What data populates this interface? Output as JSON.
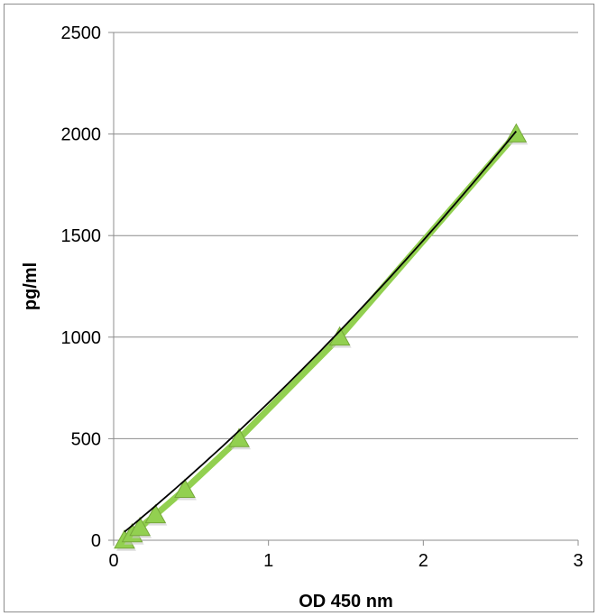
{
  "chart_data": {
    "type": "scatter",
    "title": "",
    "xlabel": "OD 450 nm",
    "ylabel": "pg/ml",
    "xlim": [
      0,
      3
    ],
    "ylim": [
      0,
      2500
    ],
    "x_ticks": [
      "0",
      "1",
      "2",
      "3"
    ],
    "y_ticks": [
      "0",
      "500",
      "1000",
      "1500",
      "2000",
      "2500"
    ],
    "grid": "horizontal",
    "legend": "none",
    "series": [
      {
        "marker": "triangle",
        "color": "#92d050",
        "points": [
          {
            "x": 0.07,
            "y": 0
          },
          {
            "x": 0.12,
            "y": 31.25
          },
          {
            "x": 0.17,
            "y": 62.5
          },
          {
            "x": 0.27,
            "y": 125
          },
          {
            "x": 0.46,
            "y": 250
          },
          {
            "x": 0.81,
            "y": 500
          },
          {
            "x": 1.46,
            "y": 1000
          },
          {
            "x": 2.6,
            "y": 2000
          }
        ]
      }
    ],
    "trendline": {
      "type": "polynomial",
      "color": "#000000",
      "coefficients": [
        -2.4,
        619.5,
        60.0
      ]
    },
    "colors": {
      "marker_fill": "#92d050",
      "marker_edge": "#76a83a",
      "line_fill": "#92d050",
      "gridline": "#8c8c8c",
      "trendline": "#000000"
    }
  }
}
